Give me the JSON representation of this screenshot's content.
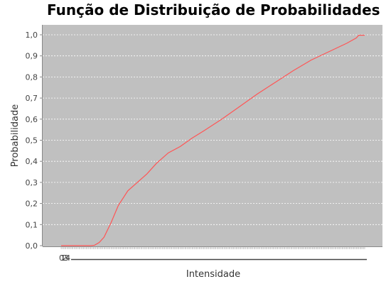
{
  "chart_data": {
    "type": "line",
    "title": "Função de Distribuição de Probabilidades",
    "xlabel": "Intensidade",
    "ylabel": "Probabilidade",
    "ylim": [
      0,
      1.0
    ],
    "yticks": [
      "0,0",
      "0,1",
      "0,2",
      "0,3",
      "0,4",
      "0,5",
      "0,6",
      "0,7",
      "0,8",
      "0,9",
      "1,0"
    ],
    "xticks_visible": [
      "0",
      "1",
      "2",
      "3",
      "4"
    ],
    "xlim": [
      0,
      255
    ],
    "grid": true,
    "legend": "none",
    "plot_background": "#c0c0c0",
    "series_color": "#ff5555",
    "grid_color": "#ffffff",
    "series": [
      {
        "x": [
          0,
          10,
          20,
          25,
          28,
          32,
          36,
          42,
          48,
          56,
          64,
          72,
          80,
          90,
          100,
          110,
          120,
          135,
          150,
          165,
          180,
          195,
          210,
          225,
          240,
          248,
          250,
          255
        ],
        "y": [
          0.0,
          0.0,
          0.0,
          0.0,
          0.002,
          0.015,
          0.04,
          0.11,
          0.19,
          0.26,
          0.3,
          0.34,
          0.39,
          0.44,
          0.47,
          0.51,
          0.545,
          0.6,
          0.66,
          0.72,
          0.775,
          0.83,
          0.88,
          0.92,
          0.96,
          0.985,
          0.998,
          0.998
        ]
      }
    ]
  }
}
